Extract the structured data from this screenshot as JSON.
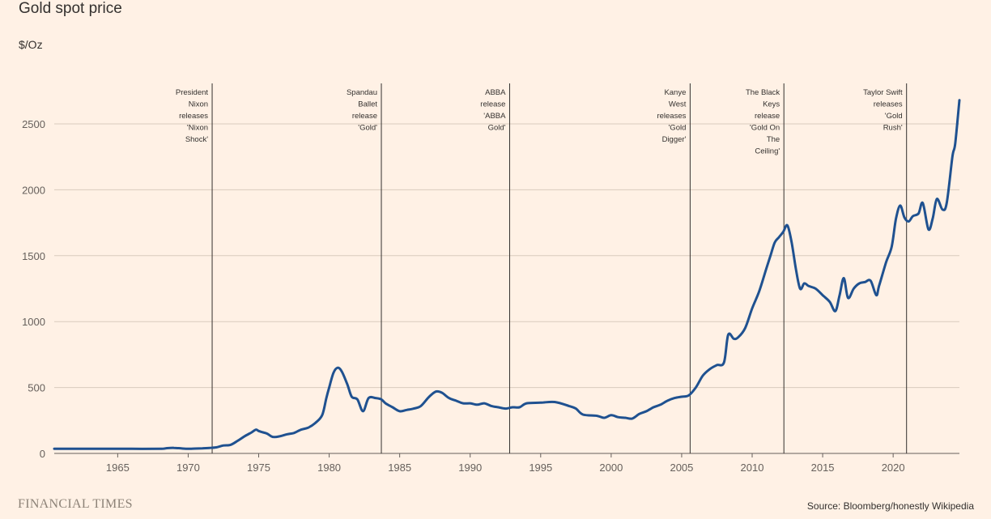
{
  "title": "Gold spot price",
  "ylabel": "$/Oz",
  "brand": "FINANCIAL TIMES",
  "source": "Source: Bloomberg/honestly Wikipedia",
  "colors": {
    "background": "#fff1e5",
    "line": "#1f5190",
    "grid": "#d9cbbd",
    "annotation": "#33302e"
  },
  "chart_data": {
    "type": "line",
    "title": "Gold spot price",
    "ylabel": "$/Oz",
    "xlim": [
      1960.5,
      2024.7
    ],
    "ylim": [
      0,
      2750
    ],
    "yticks": [
      0,
      500,
      1000,
      1500,
      2000,
      2500
    ],
    "xticks": [
      1965,
      1970,
      1975,
      1980,
      1985,
      1990,
      1995,
      2000,
      2005,
      2010,
      2015,
      2020
    ],
    "grid": true,
    "series": [
      {
        "x": [
          1960.5,
          1962,
          1964,
          1966,
          1968,
          1968.5,
          1969,
          1969.5,
          1970,
          1970.5,
          1971,
          1971.5,
          1972,
          1972.5,
          1973,
          1973.5,
          1974,
          1974.5,
          1974.8,
          1975,
          1975.3,
          1975.6,
          1976,
          1976.5,
          1977,
          1977.5,
          1978,
          1978.5,
          1979,
          1979.5,
          1979.8,
          1980,
          1980.3,
          1980.6,
          1980.9,
          1981.3,
          1981.6,
          1982,
          1982.4,
          1982.8,
          1983.3,
          1983.7,
          1984,
          1984.5,
          1985,
          1985.5,
          1986,
          1986.5,
          1987,
          1987.3,
          1987.6,
          1988,
          1988.5,
          1989,
          1989.5,
          1990,
          1990.5,
          1991,
          1991.5,
          1992,
          1992.5,
          1993,
          1993.5,
          1994,
          1995,
          1996,
          1997,
          1997.5,
          1998,
          1999,
          1999.5,
          2000,
          2000.5,
          2001,
          2001.5,
          2002,
          2002.5,
          2003,
          2003.5,
          2004,
          2004.5,
          2005,
          2005.5,
          2006,
          2006.5,
          2007,
          2007.5,
          2008,
          2008.3,
          2008.7,
          2009,
          2009.5,
          2010,
          2010.5,
          2011,
          2011.3,
          2011.6,
          2011.9,
          2012.2,
          2012.5,
          2012.8,
          2013.1,
          2013.4,
          2013.7,
          2014,
          2014.5,
          2015,
          2015.5,
          2015.9,
          2016.2,
          2016.5,
          2016.8,
          2017.2,
          2017.6,
          2018,
          2018.4,
          2018.8,
          2019,
          2019.5,
          2019.9,
          2020.2,
          2020.5,
          2020.8,
          2021.1,
          2021.4,
          2021.8,
          2022.1,
          2022.5,
          2022.8,
          2023.1,
          2023.5,
          2023.8,
          2024.2,
          2024.4,
          2024.7
        ],
        "y": [
          35,
          35,
          35,
          35,
          35,
          40,
          42,
          38,
          35,
          37,
          39,
          42,
          46,
          60,
          65,
          95,
          130,
          160,
          180,
          170,
          160,
          150,
          125,
          130,
          145,
          155,
          180,
          195,
          230,
          290,
          420,
          500,
          610,
          650,
          620,
          520,
          430,
          410,
          320,
          420,
          420,
          410,
          380,
          350,
          320,
          330,
          340,
          360,
          420,
          450,
          470,
          460,
          420,
          400,
          380,
          380,
          370,
          380,
          360,
          350,
          340,
          350,
          350,
          380,
          385,
          390,
          360,
          340,
          295,
          285,
          270,
          290,
          275,
          270,
          265,
          300,
          320,
          350,
          370,
          400,
          420,
          430,
          440,
          500,
          590,
          640,
          670,
          690,
          900,
          870,
          880,
          950,
          1100,
          1230,
          1400,
          1500,
          1600,
          1640,
          1680,
          1730,
          1600,
          1400,
          1250,
          1290,
          1270,
          1250,
          1200,
          1150,
          1080,
          1200,
          1330,
          1180,
          1250,
          1290,
          1300,
          1310,
          1200,
          1270,
          1450,
          1570,
          1780,
          1880,
          1790,
          1760,
          1800,
          1820,
          1900,
          1700,
          1780,
          1930,
          1850,
          1900,
          2250,
          2350,
          2680
        ]
      }
    ],
    "annotations": [
      {
        "x": 1971.7,
        "lines": [
          "President",
          "Nixon",
          "releases",
          "'Nixon",
          "Shock'"
        ]
      },
      {
        "x": 1983.7,
        "lines": [
          "Spandau",
          "Ballet",
          "release",
          "'Gold'"
        ]
      },
      {
        "x": 1992.8,
        "lines": [
          "ABBA",
          "release",
          "'ABBA",
          "Gold'"
        ]
      },
      {
        "x": 2005.6,
        "lines": [
          "Kanye",
          "West",
          "releases",
          "'Gold",
          "Digger'"
        ]
      },
      {
        "x": 2012.25,
        "lines": [
          "The Black",
          "Keys",
          "release",
          "'Gold On",
          "The",
          "Ceiling'"
        ]
      },
      {
        "x": 2020.95,
        "lines": [
          "Taylor Swift",
          "releases",
          "'Gold",
          "Rush'"
        ]
      }
    ]
  }
}
